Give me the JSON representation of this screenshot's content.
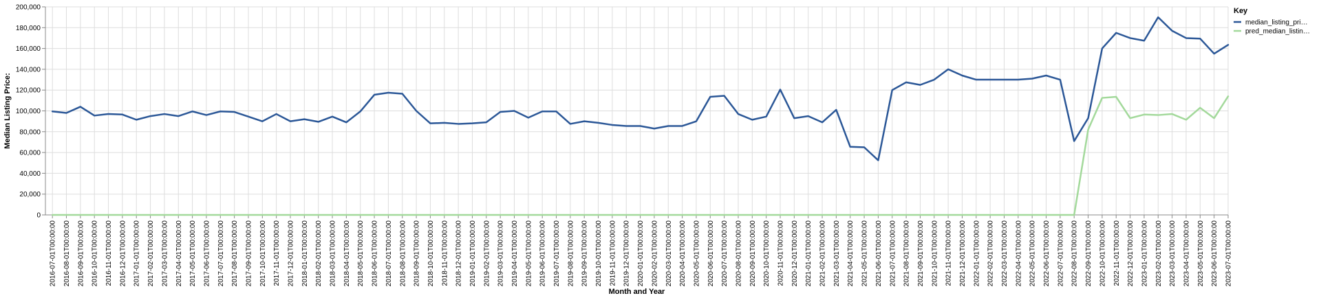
{
  "chart_data": {
    "type": "line",
    "xlabel": "Month and Year",
    "ylabel": "Median Listing Price:",
    "ylim": [
      0,
      200000
    ],
    "yticks": [
      "0",
      "20,000",
      "40,000",
      "60,000",
      "80,000",
      "100,000",
      "120,000",
      "140,000",
      "160,000",
      "180,000",
      "200,000"
    ],
    "grid": true,
    "legend": {
      "title": "Key",
      "placement": "top-right"
    },
    "x": [
      "2016-07-01T00:00:00",
      "2016-08-01T00:00:00",
      "2016-09-01T00:00:00",
      "2016-10-01T00:00:00",
      "2016-11-01T00:00:00",
      "2016-12-01T00:00:00",
      "2017-01-01T00:00:00",
      "2017-02-01T00:00:00",
      "2017-03-01T00:00:00",
      "2017-04-01T00:00:00",
      "2017-05-01T00:00:00",
      "2017-06-01T00:00:00",
      "2017-07-01T00:00:00",
      "2017-08-01T00:00:00",
      "2017-09-01T00:00:00",
      "2017-10-01T00:00:00",
      "2017-11-01T00:00:00",
      "2017-12-01T00:00:00",
      "2018-01-01T00:00:00",
      "2018-02-01T00:00:00",
      "2018-03-01T00:00:00",
      "2018-04-01T00:00:00",
      "2018-05-01T00:00:00",
      "2018-06-01T00:00:00",
      "2018-07-01T00:00:00",
      "2018-08-01T00:00:00",
      "2018-09-01T00:00:00",
      "2018-10-01T00:00:00",
      "2018-11-01T00:00:00",
      "2018-12-01T00:00:00",
      "2019-01-01T00:00:00",
      "2019-02-01T00:00:00",
      "2019-03-01T00:00:00",
      "2019-04-01T00:00:00",
      "2019-05-01T00:00:00",
      "2019-06-01T00:00:00",
      "2019-07-01T00:00:00",
      "2019-08-01T00:00:00",
      "2019-09-01T00:00:00",
      "2019-10-01T00:00:00",
      "2019-11-01T00:00:00",
      "2019-12-01T00:00:00",
      "2020-01-01T00:00:00",
      "2020-02-01T00:00:00",
      "2020-03-01T00:00:00",
      "2020-04-01T00:00:00",
      "2020-05-01T00:00:00",
      "2020-06-01T00:00:00",
      "2020-07-01T00:00:00",
      "2020-08-01T00:00:00",
      "2020-09-01T00:00:00",
      "2020-10-01T00:00:00",
      "2020-11-01T00:00:00",
      "2020-12-01T00:00:00",
      "2021-01-01T00:00:00",
      "2021-02-01T00:00:00",
      "2021-03-01T00:00:00",
      "2021-04-01T00:00:00",
      "2021-05-01T00:00:00",
      "2021-06-01T00:00:00",
      "2021-07-01T00:00:00",
      "2021-08-01T00:00:00",
      "2021-09-01T00:00:00",
      "2021-10-01T00:00:00",
      "2021-11-01T00:00:00",
      "2021-12-01T00:00:00",
      "2022-01-01T00:00:00",
      "2022-02-01T00:00:00",
      "2022-03-01T00:00:00",
      "2022-04-01T00:00:00",
      "2022-05-01T00:00:00",
      "2022-06-01T00:00:00",
      "2022-07-01T00:00:00",
      "2022-08-01T00:00:00",
      "2022-09-01T00:00:00",
      "2022-10-01T00:00:00",
      "2022-11-01T00:00:00",
      "2022-12-01T00:00:00",
      "2023-01-01T00:00:00",
      "2023-02-01T00:00:00",
      "2023-03-01T00:00:00",
      "2023-04-01T00:00:00",
      "2023-05-01T00:00:00",
      "2023-06-01T00:00:00",
      "2023-07-01T00:00:00"
    ],
    "series": [
      {
        "name": "median_listing_pri…",
        "color": "#2b5797",
        "values": [
          99500,
          98000,
          104000,
          95500,
          97000,
          96500,
          91500,
          95000,
          97000,
          95000,
          99500,
          96000,
          99500,
          99000,
          94500,
          90000,
          97000,
          90000,
          92000,
          89500,
          94500,
          89000,
          99500,
          115500,
          117500,
          116500,
          100000,
          88000,
          88500,
          87500,
          88000,
          89000,
          99000,
          100000,
          93500,
          99500,
          99500,
          87500,
          90000,
          88500,
          86500,
          85500,
          85500,
          83000,
          85500,
          85500,
          90000,
          113500,
          114500,
          97000,
          91500,
          94500,
          120500,
          93000,
          95000,
          89000,
          101000,
          65500,
          65000,
          52500,
          120000,
          127500,
          125000,
          130000,
          140000,
          134000,
          130000,
          130000,
          130000,
          130000,
          131000,
          134000,
          130000,
          71000,
          93000,
          160000,
          175000,
          170000,
          167500,
          190000,
          177000,
          170000,
          169500,
          155000,
          163500
        ]
      },
      {
        "name": "pred_median_listin…",
        "color": "#a3d99b",
        "values": [
          0,
          0,
          0,
          0,
          0,
          0,
          0,
          0,
          0,
          0,
          0,
          0,
          0,
          0,
          0,
          0,
          0,
          0,
          0,
          0,
          0,
          0,
          0,
          0,
          0,
          0,
          0,
          0,
          0,
          0,
          0,
          0,
          0,
          0,
          0,
          0,
          0,
          0,
          0,
          0,
          0,
          0,
          0,
          0,
          0,
          0,
          0,
          0,
          0,
          0,
          0,
          0,
          0,
          0,
          0,
          0,
          0,
          0,
          0,
          0,
          0,
          0,
          0,
          0,
          0,
          0,
          0,
          0,
          0,
          0,
          0,
          0,
          0,
          0,
          82000,
          112500,
          113500,
          93000,
          96500,
          96000,
          97000,
          91500,
          103000,
          93000,
          114000
        ]
      }
    ]
  }
}
